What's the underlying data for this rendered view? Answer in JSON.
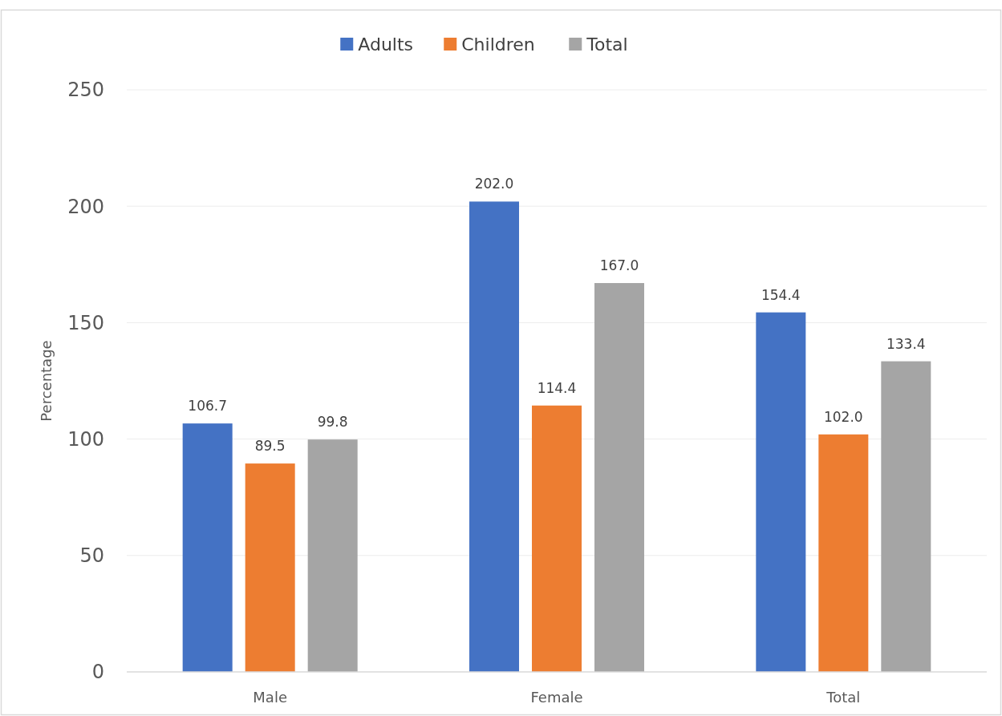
{
  "chart_data": {
    "type": "bar",
    "ylabel": "Percentage",
    "categories": [
      "Male",
      "Female",
      "Total"
    ],
    "series": [
      {
        "name": "Adults",
        "color": "#4472c4",
        "values": [
          106.7,
          202.0,
          154.4
        ]
      },
      {
        "name": "Children",
        "color": "#ed7d31",
        "values": [
          89.5,
          114.4,
          102.0
        ]
      },
      {
        "name": "Total",
        "color": "#a5a5a5",
        "values": [
          99.8,
          167.0,
          133.4
        ]
      }
    ],
    "value_labels": [
      [
        "106.7",
        "202.0",
        "154.4"
      ],
      [
        "89.5",
        "114.4",
        "102.0"
      ],
      [
        "99.8",
        "167.0",
        "133.4"
      ]
    ],
    "ylim": [
      0,
      250
    ],
    "yticks": [
      0,
      50,
      100,
      150,
      200,
      250
    ],
    "grid": "y",
    "legend": "top"
  }
}
